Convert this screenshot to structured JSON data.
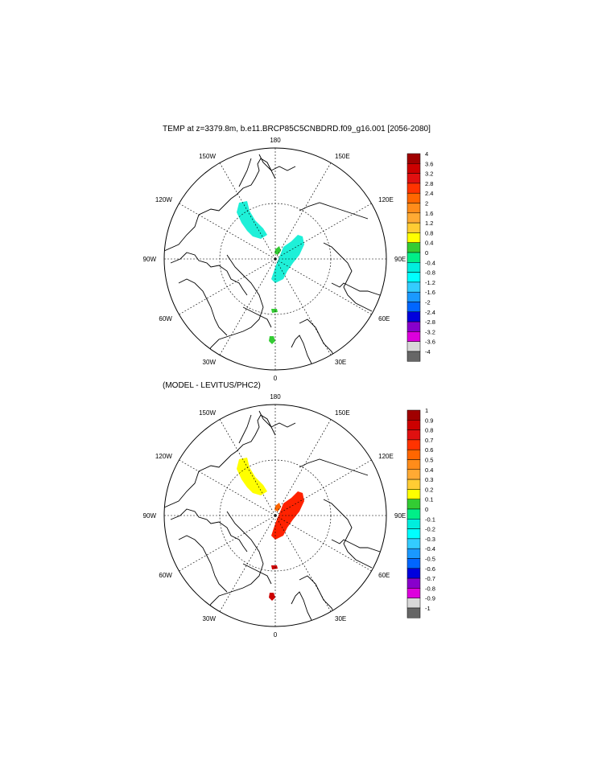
{
  "panels": [
    {
      "title": "TEMP at z=3379.8m, b.e11.BRCP85C5CNBDRD.f09_g16.001 [2056-2080]",
      "lon_labels": {
        "top": "180",
        "upper_left": "150W",
        "upper_right": "150E",
        "mid_upper_left": "120W",
        "mid_upper_right": "120E",
        "left": "90W",
        "right": "90E",
        "mid_lower_left": "60W",
        "mid_lower_right": "60E",
        "lower_left": "30W",
        "lower_right": "30E",
        "bottom": "0"
      },
      "colorbar": {
        "labels": [
          "4",
          "3.6",
          "3.2",
          "2.8",
          "2.4",
          "2",
          "1.6",
          "1.2",
          "0.8",
          "0.4",
          "0",
          "-0.4",
          "-0.8",
          "-1.2",
          "-1.6",
          "-2",
          "-2.4",
          "-2.8",
          "-3.2",
          "-3.6",
          "-4"
        ],
        "colors": [
          "#a00000",
          "#cc0000",
          "#e01010",
          "#ff3300",
          "#ff6600",
          "#ff8c1a",
          "#ffaa33",
          "#ffcc33",
          "#ffff00",
          "#33cc33",
          "#00ee88",
          "#00eedd",
          "#00ffff",
          "#33ccff",
          "#1a99ff",
          "#0066ff",
          "#0000dd",
          "#8800cc",
          "#dd00dd",
          "#d8d8d8",
          "#666666"
        ]
      },
      "anomaly_patches": [
        {
          "name": "canada-basin-patch",
          "color": "#1ef0d8"
        },
        {
          "name": "eurasian-basin-patch",
          "color": "#1ef0d8"
        },
        {
          "name": "pole-patch",
          "color": "#33cc33"
        },
        {
          "name": "fram-patch",
          "color": "#33cc33"
        },
        {
          "name": "greenland-sea-patch",
          "color": "#33cc33"
        }
      ]
    },
    {
      "title": "(MODEL - LEVITUS/PHC2)",
      "lon_labels": {
        "top": "180",
        "upper_left": "150W",
        "upper_right": "150E",
        "mid_upper_left": "120W",
        "mid_upper_right": "120E",
        "left": "90W",
        "right": "90E",
        "mid_lower_left": "60W",
        "mid_lower_right": "60E",
        "lower_left": "30W",
        "lower_right": "30E",
        "bottom": "0"
      },
      "colorbar": {
        "labels": [
          "1",
          "0.9",
          "0.8",
          "0.7",
          "0.6",
          "0.5",
          "0.4",
          "0.3",
          "0.2",
          "0.1",
          "0",
          "-0.1",
          "-0.2",
          "-0.3",
          "-0.4",
          "-0.5",
          "-0.6",
          "-0.7",
          "-0.8",
          "-0.9",
          "-1"
        ],
        "colors": [
          "#a00000",
          "#cc0000",
          "#e01010",
          "#ff3300",
          "#ff6600",
          "#ff8c1a",
          "#ffaa33",
          "#ffcc33",
          "#ffff00",
          "#33cc33",
          "#00ee88",
          "#00eedd",
          "#00ffff",
          "#33ccff",
          "#1a99ff",
          "#0066ff",
          "#0000dd",
          "#8800cc",
          "#dd00dd",
          "#d8d8d8",
          "#666666"
        ]
      },
      "anomaly_patches": [
        {
          "name": "canada-basin-patch",
          "color": "#ffff00"
        },
        {
          "name": "eurasian-basin-patch",
          "color": "#ff2200"
        },
        {
          "name": "pole-patch",
          "color": "#ff6600"
        },
        {
          "name": "fram-patch",
          "color": "#cc0000"
        },
        {
          "name": "greenland-sea-patch",
          "color": "#cc0000"
        }
      ]
    }
  ]
}
